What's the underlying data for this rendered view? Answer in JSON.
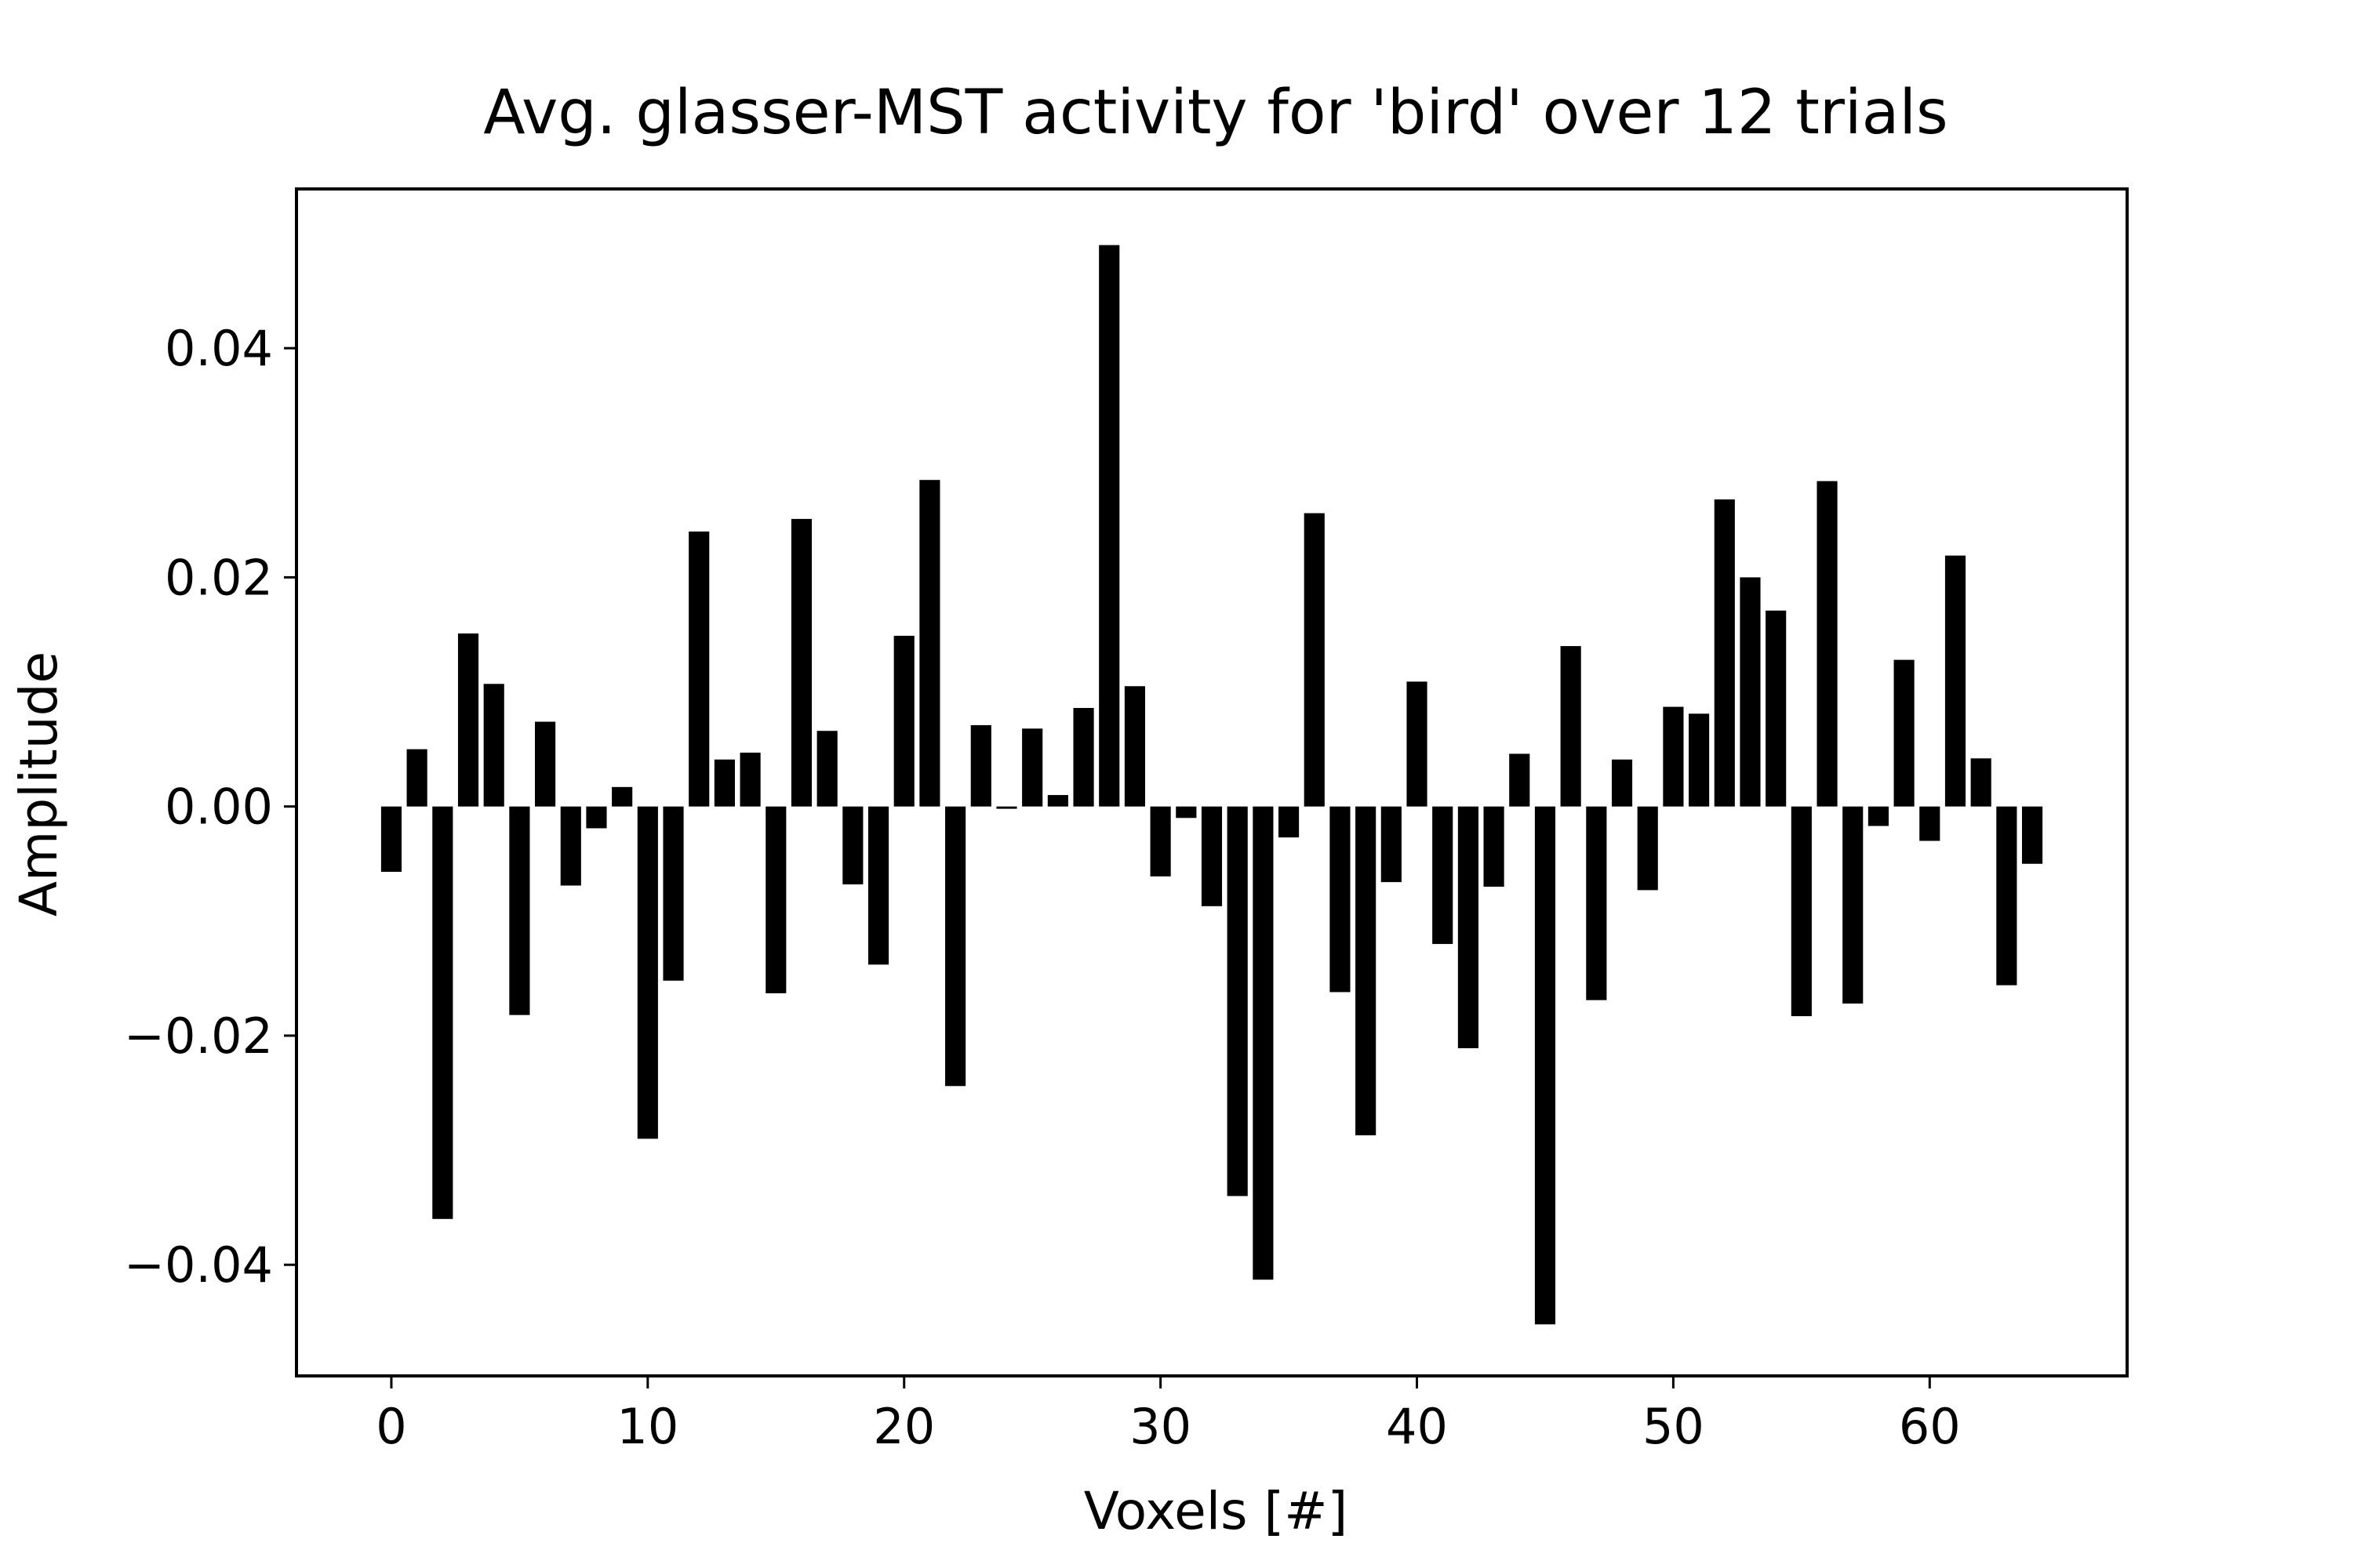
{
  "chart_data": {
    "type": "bar",
    "title": "Avg. glasser-MST activity for 'bird' over 12 trials",
    "xlabel": "Voxels [#]",
    "ylabel": "Amplitude",
    "xlim": [
      -3.7,
      67.7
    ],
    "ylim": [
      -0.0497,
      0.0539
    ],
    "xticks": [
      0,
      10,
      20,
      30,
      40,
      50,
      60
    ],
    "xtick_labels": [
      "0",
      "10",
      "20",
      "30",
      "40",
      "50",
      "60"
    ],
    "yticks": [
      0.04,
      0.02,
      0.0,
      -0.02,
      -0.04
    ],
    "ytick_labels": [
      "0.04",
      "0.02",
      "0.00",
      "−0.02",
      "−0.04"
    ],
    "grid": false,
    "bar_color": "#000000",
    "x": [
      0,
      1,
      2,
      3,
      4,
      5,
      6,
      7,
      8,
      9,
      10,
      11,
      12,
      13,
      14,
      15,
      16,
      17,
      18,
      19,
      20,
      21,
      22,
      23,
      24,
      25,
      26,
      27,
      28,
      29,
      30,
      31,
      32,
      33,
      34,
      35,
      36,
      37,
      38,
      39,
      40,
      41,
      42,
      43,
      44,
      45,
      46,
      47,
      48,
      49,
      50,
      51,
      52,
      53,
      54,
      55,
      56,
      57,
      58,
      59,
      60,
      61,
      62,
      63,
      64
    ],
    "values": [
      -0.0057,
      0.005,
      -0.036,
      0.0151,
      0.0107,
      -0.0182,
      0.0074,
      -0.0069,
      -0.0019,
      0.0017,
      -0.029,
      -0.0152,
      0.024,
      0.0041,
      0.0047,
      -0.0163,
      0.0251,
      0.0066,
      -0.0068,
      -0.0138,
      0.0149,
      0.0285,
      -0.0244,
      0.0071,
      -0.0002,
      0.0068,
      0.001,
      0.0086,
      0.049,
      0.0105,
      -0.0061,
      -0.001,
      -0.0087,
      -0.034,
      -0.0413,
      -0.0027,
      0.0256,
      -0.0162,
      -0.0287,
      -0.0066,
      0.0109,
      -0.012,
      -0.0211,
      -0.007,
      0.0046,
      -0.0452,
      0.014,
      -0.0169,
      0.0041,
      -0.0073,
      0.0087,
      0.0081,
      0.0268,
      0.02,
      0.0171,
      -0.0183,
      0.0284,
      -0.0172,
      -0.0017,
      0.0128,
      -0.003,
      0.0219,
      0.0042,
      -0.0156,
      -0.005
    ]
  }
}
